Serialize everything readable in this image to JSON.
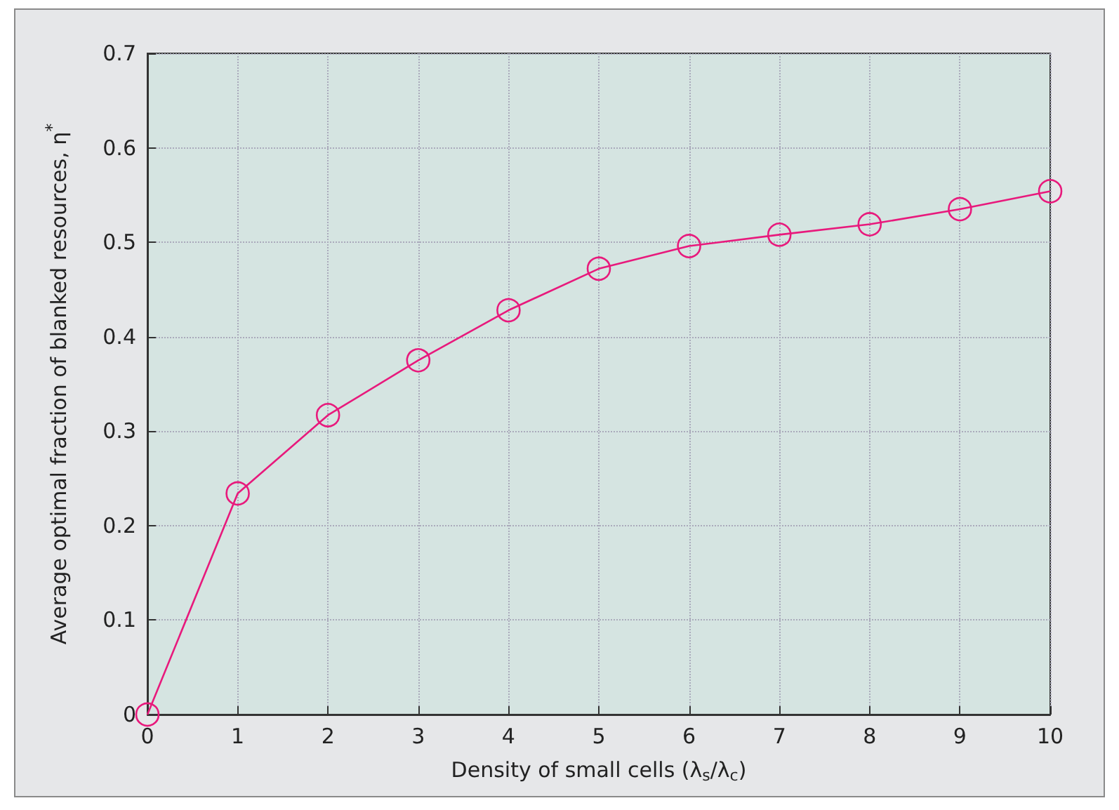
{
  "chart_data": {
    "type": "line",
    "xlabel": "Density of small cells (λ$_{s}$/λ$_{c}$)",
    "ylabel": "Average optimal fraction of blanked resources, η$^{*}$",
    "x": [
      0,
      1,
      2,
      3,
      4,
      5,
      6,
      7,
      8,
      9,
      10
    ],
    "series": [
      {
        "color": "#e8197c",
        "values": [
          0,
          0.234,
          0.317,
          0.375,
          0.428,
          0.472,
          0.496,
          0.508,
          0.519,
          0.535,
          0.554
        ]
      }
    ],
    "xlim": [
      0,
      10
    ],
    "xticks": [
      0,
      1,
      2,
      3,
      4,
      5,
      6,
      7,
      8,
      9,
      10
    ],
    "ylim": [
      0,
      0.7
    ],
    "yticks": [
      0,
      0.1,
      0.2,
      0.3,
      0.4,
      0.5,
      0.6,
      0.7
    ],
    "grid": true,
    "marker": "circle",
    "line_style": "solid"
  }
}
